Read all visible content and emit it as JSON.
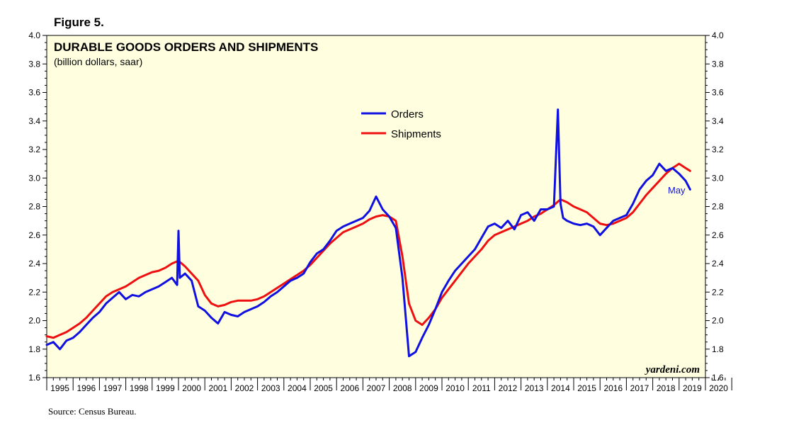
{
  "figure_label": "Figure 5.",
  "source": "Source: Census Bureau.",
  "watermark": "yardeni.com",
  "colors": {
    "orders": "#1010e0",
    "shipments": "#ee1010",
    "plot_bg": "#ffffe0",
    "annotation": "#1010e0"
  },
  "chart_data": {
    "type": "line",
    "title": "DURABLE GOODS ORDERS AND SHIPMENTS",
    "subtitle": "(billion dollars, saar)",
    "xlabel": "",
    "ylabel": "",
    "xlim": [
      1995.0,
      2020.0
    ],
    "ylim": [
      1.6,
      4.0
    ],
    "y_ticks": [
      "1.6",
      "1.8",
      "2.0",
      "2.2",
      "2.4",
      "2.6",
      "2.8",
      "3.0",
      "3.2",
      "3.4",
      "3.6",
      "3.8",
      "4.0"
    ],
    "x_tick_labels": [
      "1995",
      "1996",
      "1997",
      "1998",
      "1999",
      "2000",
      "2001",
      "2002",
      "2003",
      "2004",
      "2005",
      "2006",
      "2007",
      "2008",
      "2009",
      "2010",
      "2011",
      "2012",
      "2013",
      "2014",
      "2015",
      "2016",
      "2017",
      "2018",
      "2019",
      "2020"
    ],
    "annotation": "May",
    "grid": false,
    "legend_position": "top-center",
    "series": [
      {
        "name": "Orders",
        "x": [
          1995.0,
          1995.25,
          1995.5,
          1995.75,
          1996.0,
          1996.25,
          1996.5,
          1996.75,
          1997.0,
          1997.25,
          1997.5,
          1997.75,
          1998.0,
          1998.25,
          1998.5,
          1998.75,
          1999.0,
          1999.25,
          1999.5,
          1999.75,
          1999.95,
          2000.0,
          2000.05,
          2000.25,
          2000.5,
          2000.75,
          2001.0,
          2001.25,
          2001.5,
          2001.75,
          2002.0,
          2002.25,
          2002.5,
          2002.75,
          2003.0,
          2003.25,
          2003.5,
          2003.75,
          2004.0,
          2004.25,
          2004.5,
          2004.75,
          2005.0,
          2005.25,
          2005.5,
          2005.75,
          2006.0,
          2006.25,
          2006.5,
          2006.75,
          2007.0,
          2007.25,
          2007.5,
          2007.75,
          2008.0,
          2008.25,
          2008.5,
          2008.75,
          2009.0,
          2009.25,
          2009.5,
          2009.75,
          2010.0,
          2010.25,
          2010.5,
          2010.75,
          2011.0,
          2011.25,
          2011.5,
          2011.75,
          2012.0,
          2012.25,
          2012.5,
          2012.75,
          2013.0,
          2013.25,
          2013.5,
          2013.75,
          2014.0,
          2014.25,
          2014.4,
          2014.5,
          2014.6,
          2014.75,
          2015.0,
          2015.25,
          2015.5,
          2015.75,
          2016.0,
          2016.25,
          2016.5,
          2016.75,
          2017.0,
          2017.25,
          2017.5,
          2017.75,
          2018.0,
          2018.25,
          2018.5,
          2018.75,
          2019.0,
          2019.25,
          2019.42
        ],
        "values": [
          1.83,
          1.85,
          1.8,
          1.86,
          1.88,
          1.92,
          1.97,
          2.02,
          2.06,
          2.12,
          2.16,
          2.2,
          2.15,
          2.18,
          2.17,
          2.2,
          2.22,
          2.24,
          2.27,
          2.3,
          2.25,
          2.63,
          2.3,
          2.33,
          2.28,
          2.1,
          2.07,
          2.02,
          1.98,
          2.06,
          2.04,
          2.03,
          2.06,
          2.08,
          2.1,
          2.13,
          2.17,
          2.2,
          2.24,
          2.28,
          2.3,
          2.33,
          2.41,
          2.47,
          2.5,
          2.56,
          2.63,
          2.66,
          2.68,
          2.7,
          2.72,
          2.77,
          2.87,
          2.78,
          2.73,
          2.65,
          2.3,
          1.75,
          1.78,
          1.88,
          1.97,
          2.08,
          2.2,
          2.28,
          2.35,
          2.4,
          2.45,
          2.5,
          2.58,
          2.66,
          2.68,
          2.65,
          2.7,
          2.64,
          2.74,
          2.76,
          2.7,
          2.78,
          2.78,
          2.8,
          3.48,
          2.82,
          2.72,
          2.7,
          2.68,
          2.67,
          2.68,
          2.66,
          2.6,
          2.65,
          2.7,
          2.72,
          2.74,
          2.82,
          2.92,
          2.98,
          3.02,
          3.1,
          3.05,
          3.07,
          3.03,
          2.98,
          2.92
        ]
      },
      {
        "name": "Shipments",
        "x": [
          1995.0,
          1995.25,
          1995.5,
          1995.75,
          1996.0,
          1996.25,
          1996.5,
          1996.75,
          1997.0,
          1997.25,
          1997.5,
          1997.75,
          1998.0,
          1998.25,
          1998.5,
          1998.75,
          1999.0,
          1999.25,
          1999.5,
          1999.75,
          2000.0,
          2000.25,
          2000.5,
          2000.75,
          2001.0,
          2001.25,
          2001.5,
          2001.75,
          2002.0,
          2002.25,
          2002.5,
          2002.75,
          2003.0,
          2003.25,
          2003.5,
          2003.75,
          2004.0,
          2004.25,
          2004.5,
          2004.75,
          2005.0,
          2005.25,
          2005.5,
          2005.75,
          2006.0,
          2006.25,
          2006.5,
          2006.75,
          2007.0,
          2007.25,
          2007.5,
          2007.75,
          2008.0,
          2008.25,
          2008.5,
          2008.75,
          2009.0,
          2009.25,
          2009.5,
          2009.75,
          2010.0,
          2010.25,
          2010.5,
          2010.75,
          2011.0,
          2011.25,
          2011.5,
          2011.75,
          2012.0,
          2012.25,
          2012.5,
          2012.75,
          2013.0,
          2013.25,
          2013.5,
          2013.75,
          2014.0,
          2014.25,
          2014.5,
          2014.75,
          2015.0,
          2015.25,
          2015.5,
          2015.75,
          2016.0,
          2016.25,
          2016.5,
          2016.75,
          2017.0,
          2017.25,
          2017.5,
          2017.75,
          2018.0,
          2018.25,
          2018.5,
          2018.75,
          2019.0,
          2019.25,
          2019.42
        ],
        "values": [
          1.89,
          1.88,
          1.9,
          1.92,
          1.95,
          1.98,
          2.02,
          2.07,
          2.12,
          2.17,
          2.2,
          2.22,
          2.24,
          2.27,
          2.3,
          2.32,
          2.34,
          2.35,
          2.37,
          2.4,
          2.42,
          2.38,
          2.33,
          2.28,
          2.18,
          2.12,
          2.1,
          2.11,
          2.13,
          2.14,
          2.14,
          2.14,
          2.15,
          2.17,
          2.2,
          2.23,
          2.26,
          2.29,
          2.32,
          2.35,
          2.39,
          2.44,
          2.49,
          2.54,
          2.58,
          2.62,
          2.64,
          2.66,
          2.68,
          2.71,
          2.73,
          2.74,
          2.73,
          2.7,
          2.45,
          2.12,
          2.0,
          1.97,
          2.02,
          2.08,
          2.16,
          2.22,
          2.28,
          2.34,
          2.4,
          2.45,
          2.5,
          2.56,
          2.6,
          2.62,
          2.64,
          2.66,
          2.68,
          2.7,
          2.73,
          2.75,
          2.78,
          2.81,
          2.85,
          2.83,
          2.8,
          2.78,
          2.76,
          2.72,
          2.68,
          2.67,
          2.68,
          2.7,
          2.72,
          2.76,
          2.82,
          2.88,
          2.93,
          2.98,
          3.03,
          3.07,
          3.1,
          3.07,
          3.05
        ]
      }
    ]
  }
}
